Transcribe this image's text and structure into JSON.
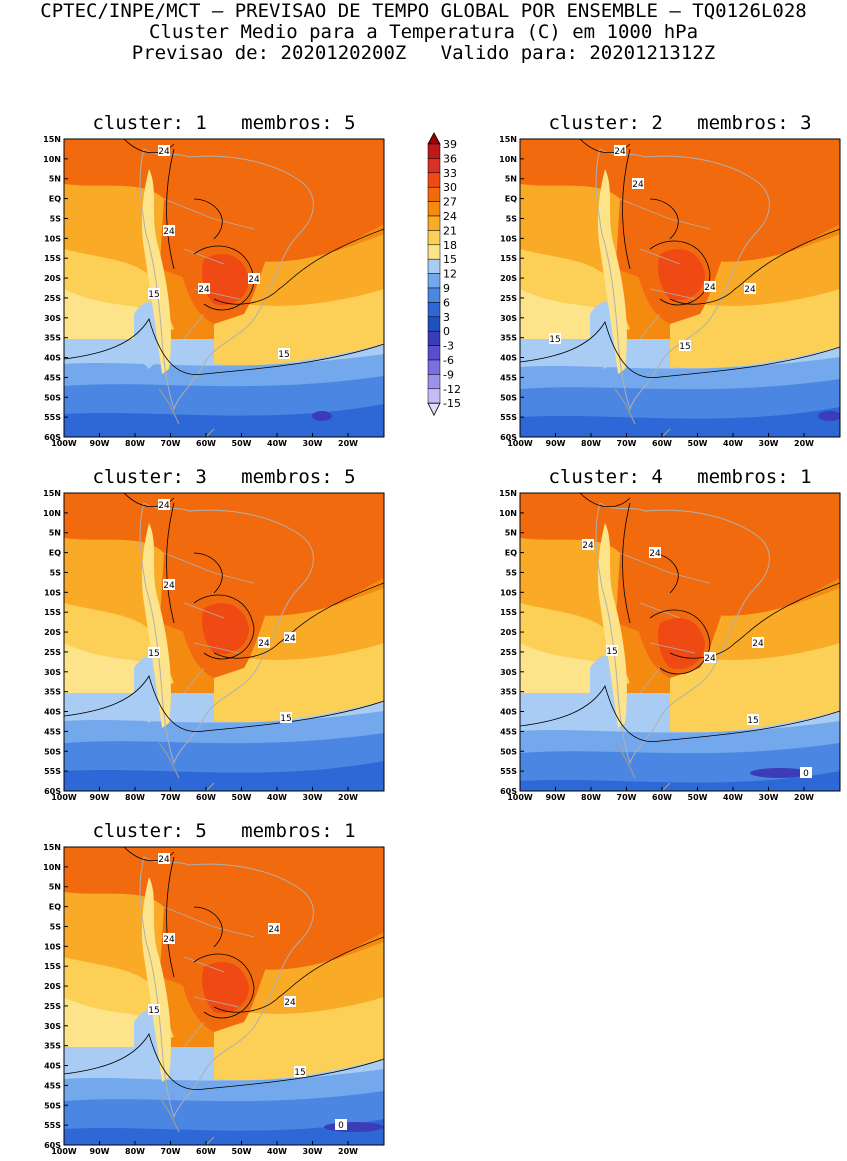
{
  "header": {
    "line1": "CPTEC/INPE/MCT – PREVISAO DE TEMPO GLOBAL POR ENSEMBLE – TQ0126L028",
    "line2": "Cluster Medio para a Temperatura (C) em 1000 hPa",
    "line3": "Previsao de: 2020120200Z   Valido para: 2020121312Z"
  },
  "axes": {
    "lat_labels": [
      "15N",
      "10N",
      "5N",
      "EQ",
      "5S",
      "10S",
      "15S",
      "20S",
      "25S",
      "30S",
      "35S",
      "40S",
      "45S",
      "50S",
      "55S",
      "60S"
    ],
    "lon_labels": [
      "100W",
      "90W",
      "80W",
      "70W",
      "60W",
      "50W",
      "40W",
      "30W",
      "20W"
    ]
  },
  "colorbar": {
    "levels": [
      "39",
      "36",
      "33",
      "30",
      "27",
      "24",
      "21",
      "18",
      "15",
      "12",
      "9",
      "6",
      "3",
      "0",
      "-3",
      "-6",
      "-9",
      "-12",
      "-15"
    ],
    "colors": [
      "#a00000",
      "#c01818",
      "#d93028",
      "#f04a14",
      "#f26a0e",
      "#f58a10",
      "#f9aa26",
      "#fccf56",
      "#fde38a",
      "#a8ccf4",
      "#74a8ec",
      "#4a86e2",
      "#2e68d6",
      "#2050c0",
      "#3a3cb8",
      "#5a4ed0",
      "#7a6ee0",
      "#9c92ea",
      "#c4bcf4",
      "#e2dcf8"
    ]
  },
  "panels": [
    {
      "title": "cluster: 1   membros: 5",
      "contours": [
        "24",
        "24",
        "24",
        "24",
        "15",
        "15"
      ]
    },
    {
      "title": "cluster: 2   membros: 3",
      "contours": [
        "24",
        "24",
        "24",
        "24",
        "15",
        "15"
      ]
    },
    {
      "title": "cluster: 3   membros: 5",
      "contours": [
        "24",
        "24",
        "24",
        "24",
        "15",
        "15"
      ]
    },
    {
      "title": "cluster: 4   membros: 1",
      "contours": [
        "24",
        "24",
        "24",
        "24",
        "15",
        "15",
        "0"
      ]
    },
    {
      "title": "cluster: 5   membros: 1",
      "contours": [
        "24",
        "24",
        "24",
        "24",
        "15",
        "15",
        "0"
      ]
    }
  ]
}
